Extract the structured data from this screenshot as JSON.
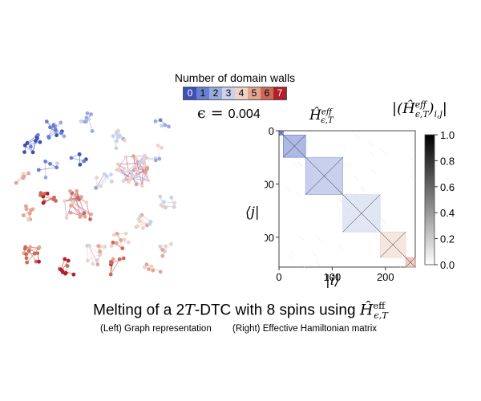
{
  "legend": {
    "title": "Number of domain walls",
    "levels": [
      "0",
      "1",
      "2",
      "3",
      "4",
      "5",
      "6",
      "7"
    ],
    "colors": [
      "#3e4fb5",
      "#6b7fd0",
      "#9aa9de",
      "#c9d1ec",
      "#efd2c6",
      "#e2a593",
      "#cc6a5a",
      "#b21e2b"
    ]
  },
  "epsilon": {
    "symbol": "ϵ",
    "eq": "=",
    "value": "0.004"
  },
  "matrix_title": {
    "base": "Ĥ",
    "sup": "eff",
    "sub": "ϵ,T"
  },
  "colorbar": {
    "title_pre": "|(",
    "title_base": "Ĥ",
    "title_sup": "eff",
    "title_sub": "ϵ,T",
    "title_post": ")",
    "title_idx": "i,j",
    "title_end": "|",
    "ticks": [
      "0.0",
      "0.2",
      "0.4",
      "0.6",
      "0.8",
      "1.0"
    ]
  },
  "axes": {
    "x_label": "|i⟩",
    "y_label": "⟨j|",
    "x_ticks": [
      "0",
      "100",
      "200"
    ],
    "y_ticks": [
      "0",
      "100",
      "200"
    ]
  },
  "chart_data": {
    "type": "heatmap",
    "title": "Ĥ eff ϵ,T",
    "xlabel": "|i⟩",
    "ylabel": "⟨j|",
    "xlim": [
      0,
      256
    ],
    "ylim": [
      0,
      256
    ],
    "blocks": [
      {
        "domain_walls": 0,
        "start": 0,
        "end": 8
      },
      {
        "domain_walls": 1,
        "start": 8,
        "end": 50
      },
      {
        "domain_walls": 2,
        "start": 50,
        "end": 120
      },
      {
        "domain_walls": 3,
        "start": 120,
        "end": 190
      },
      {
        "domain_walls": 4,
        "start": 190,
        "end": 238
      },
      {
        "domain_walls": 5,
        "start": 238,
        "end": 256
      }
    ],
    "colorbar_range": [
      0.0,
      1.0
    ]
  },
  "caption": {
    "main_pre": "Melting of a 2",
    "main_T": "T",
    "main_mid": "-DTC with 8 spins using ",
    "main_H": "Ĥ",
    "main_sup": "eff",
    "main_sub": "ϵ,T",
    "left": "(Left) Graph representation",
    "right": "(Right) Effective Hamiltonian matrix"
  }
}
